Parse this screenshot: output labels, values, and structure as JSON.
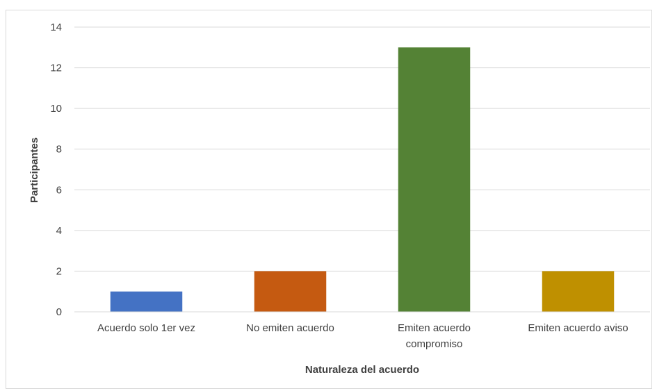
{
  "chart_data": {
    "type": "bar",
    "title": "",
    "xlabel": "Naturaleza del acuerdo",
    "ylabel": "Participantes",
    "categories": [
      "Acuerdo solo 1er vez",
      "No emiten acuerdo",
      "Emiten acuerdo compromiso",
      "Emiten acuerdo aviso"
    ],
    "category_label_lines": [
      [
        "Acuerdo solo 1er vez"
      ],
      [
        "No emiten acuerdo"
      ],
      [
        "Emiten acuerdo",
        "compromiso"
      ],
      [
        "Emiten acuerdo aviso"
      ]
    ],
    "values": [
      1,
      2,
      13,
      2
    ],
    "bar_colors": [
      "#4472c4",
      "#c55a11",
      "#548235",
      "#bf9000"
    ],
    "ylim": [
      0,
      14
    ],
    "yticks": [
      0,
      2,
      4,
      6,
      8,
      10,
      12,
      14
    ],
    "grid": true,
    "legend": false
  }
}
